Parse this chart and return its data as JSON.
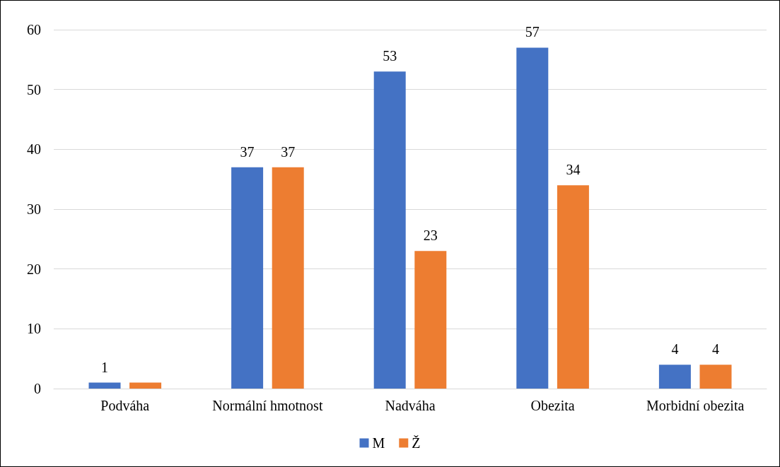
{
  "chart_data": {
    "type": "bar",
    "categories": [
      "Podváha",
      "Normální hmotnost",
      "Nadváha",
      "Obezita",
      "Morbidní obezita"
    ],
    "series": [
      {
        "name": "M",
        "color": "#4472c4",
        "values": [
          1,
          37,
          53,
          57,
          4
        ],
        "value_labels": [
          "1",
          "37",
          "53",
          "57",
          "4"
        ]
      },
      {
        "name": "Ž",
        "color": "#ed7d31",
        "values": [
          1,
          37,
          23,
          34,
          4
        ],
        "value_labels": [
          null,
          "37",
          "23",
          "34",
          "4"
        ]
      }
    ],
    "ylim": [
      0,
      60
    ],
    "yticks": [
      0,
      10,
      20,
      30,
      40,
      50,
      60
    ],
    "grid": "y",
    "legend": "bottom"
  }
}
